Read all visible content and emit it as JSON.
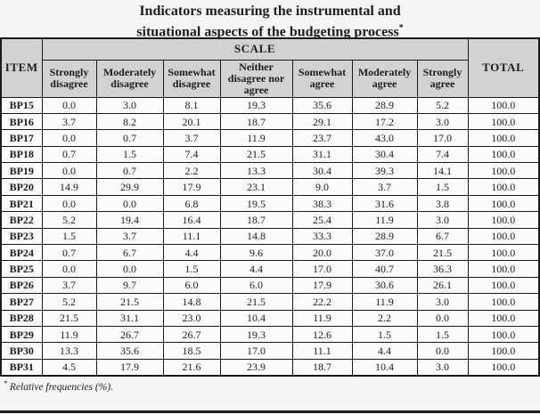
{
  "title": {
    "line1": "Indicators measuring the instrumental and",
    "line2": "situational aspects of the budgeting process",
    "superscript": "*"
  },
  "table": {
    "item_header": "ITEM",
    "scale_header": "SCALE",
    "total_header": "TOTAL",
    "scale_columns": [
      "Strongly disagree",
      "Moderately disagree",
      "Somewhat disagree",
      "Neither disagree nor agree",
      "Somewhat agree",
      "Moderately agree",
      "Strongly agree"
    ],
    "rows": [
      {
        "item": "BP15",
        "values": [
          "0.0",
          "3.0",
          "8.1",
          "19.3",
          "35.6",
          "28.9",
          "5.2",
          "100.0"
        ]
      },
      {
        "item": "BP16",
        "values": [
          "3.7",
          "8.2",
          "20.1",
          "18.7",
          "29.1",
          "17.2",
          "3.0",
          "100.0"
        ]
      },
      {
        "item": "BP17",
        "values": [
          "0.0",
          "0.7",
          "3.7",
          "11.9",
          "23.7",
          "43.0",
          "17.0",
          "100.0"
        ]
      },
      {
        "item": "BP18",
        "values": [
          "0.7",
          "1.5",
          "7.4",
          "21.5",
          "31.1",
          "30.4",
          "7.4",
          "100.0"
        ]
      },
      {
        "item": "BP19",
        "values": [
          "0.0",
          "0.7",
          "2.2",
          "13.3",
          "30.4",
          "39.3",
          "14.1",
          "100.0"
        ]
      },
      {
        "item": "BP20",
        "values": [
          "14.9",
          "29.9",
          "17.9",
          "23.1",
          "9.0",
          "3.7",
          "1.5",
          "100.0"
        ]
      },
      {
        "item": "BP21",
        "values": [
          "0.0",
          "0.0",
          "6.8",
          "19.5",
          "38.3",
          "31.6",
          "3.8",
          "100.0"
        ]
      },
      {
        "item": "BP22",
        "values": [
          "5.2",
          "19.4",
          "16.4",
          "18.7",
          "25.4",
          "11.9",
          "3.0",
          "100.0"
        ]
      },
      {
        "item": "BP23",
        "values": [
          "1.5",
          "3.7",
          "11.1",
          "14.8",
          "33.3",
          "28.9",
          "6.7",
          "100.0"
        ]
      },
      {
        "item": "BP24",
        "values": [
          "0.7",
          "6.7",
          "4.4",
          "9.6",
          "20.0",
          "37.0",
          "21.5",
          "100.0"
        ]
      },
      {
        "item": "BP25",
        "values": [
          "0.0",
          "0.0",
          "1.5",
          "4.4",
          "17.0",
          "40.7",
          "36.3",
          "100.0"
        ]
      },
      {
        "item": "BP26",
        "values": [
          "3.7",
          "9.7",
          "6.0",
          "6.0",
          "17.9",
          "30.6",
          "26.1",
          "100.0"
        ]
      },
      {
        "item": "BP27",
        "values": [
          "5.2",
          "21.5",
          "14.8",
          "21.5",
          "22.2",
          "11.9",
          "3.0",
          "100.0"
        ]
      },
      {
        "item": "BP28",
        "values": [
          "21.5",
          "31.1",
          "23.0",
          "10.4",
          "11.9",
          "2.2",
          "0.0",
          "100.0"
        ]
      },
      {
        "item": "BP29",
        "values": [
          "11.9",
          "26.7",
          "26.7",
          "19.3",
          "12.6",
          "1.5",
          "1.5",
          "100.0"
        ]
      },
      {
        "item": "BP30",
        "values": [
          "13.3",
          "35.6",
          "18.5",
          "17.0",
          "11.1",
          "4.4",
          "0.0",
          "100.0"
        ]
      },
      {
        "item": "BP31",
        "values": [
          "4.5",
          "17.9",
          "21.6",
          "23.9",
          "18.7",
          "10.4",
          "3.0",
          "100.0"
        ]
      }
    ]
  },
  "footnote": {
    "symbol": "*",
    "text": "Relative frequencies (%)."
  },
  "colors": {
    "header_bg": "#d2d2d2",
    "cell_bg": "#fcfcfc",
    "border": "#1a1a1a",
    "page_bg": "#f5f5f5",
    "text": "#1c1c1c"
  }
}
